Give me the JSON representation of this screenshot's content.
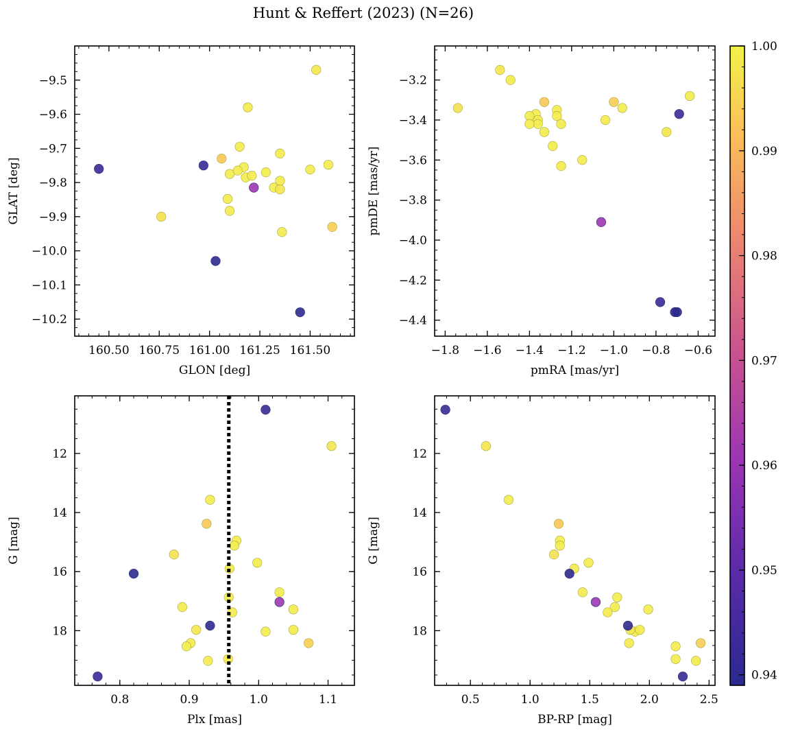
{
  "chart_data": {
    "type": "scatter",
    "title": "Hunt & Reffert (2023) (N=26)",
    "colormap": "plasma",
    "colorbar": {
      "range": [
        0.939,
        1.0
      ],
      "ticks": [
        0.94,
        0.95,
        0.96,
        0.97,
        0.98,
        0.99,
        1.0
      ],
      "tick_labels": [
        "0.94",
        "0.95",
        "0.96",
        "0.97",
        "0.98",
        "0.99",
        "1.00"
      ],
      "low_color": "#2a2a8e",
      "mid_color": "#a93cb8",
      "high_color": "#f2f24a"
    },
    "stars": [
      {
        "glon": 160.45,
        "glat": -9.76,
        "pmra": -0.78,
        "pmde": -4.31,
        "plx": 0.768,
        "gmag": 19.55,
        "bprp": 2.28,
        "prob": 0.942
      },
      {
        "glon": 160.97,
        "glat": -9.75,
        "pmra": -0.69,
        "pmde": -3.37,
        "plx": 1.01,
        "gmag": 10.52,
        "bprp": 0.29,
        "prob": 0.942
      },
      {
        "glon": 161.03,
        "glat": -10.03,
        "pmra": -0.71,
        "pmde": -4.36,
        "plx": 0.82,
        "gmag": 16.07,
        "bprp": 1.33,
        "prob": 0.94
      },
      {
        "glon": 161.45,
        "glat": -10.18,
        "pmra": -0.7,
        "pmde": -4.36,
        "plx": 0.93,
        "gmag": 17.83,
        "bprp": 1.82,
        "prob": 0.94
      },
      {
        "glon": 161.22,
        "glat": -9.815,
        "pmra": -1.06,
        "pmde": -3.91,
        "plx": 1.03,
        "gmag": 17.03,
        "bprp": 1.55,
        "prob": 0.961
      },
      {
        "glon": 161.53,
        "glat": -9.47,
        "pmra": -1.54,
        "pmde": -3.15,
        "plx": 1.105,
        "gmag": 11.75,
        "bprp": 0.63,
        "prob": 0.998
      },
      {
        "glon": 160.76,
        "glat": -9.9,
        "pmra": -1.74,
        "pmde": -3.34,
        "plx": 0.878,
        "gmag": 15.42,
        "bprp": 1.2,
        "prob": 0.997
      },
      {
        "glon": 161.19,
        "glat": -9.58,
        "pmra": -1.49,
        "pmde": -3.2,
        "plx": 0.93,
        "gmag": 13.57,
        "bprp": 0.82,
        "prob": 0.999
      },
      {
        "glon": 161.06,
        "glat": -9.73,
        "pmra": -1.33,
        "pmde": -3.31,
        "plx": 0.925,
        "gmag": 14.38,
        "bprp": 1.24,
        "prob": 0.993
      },
      {
        "glon": 161.15,
        "glat": -9.695,
        "pmra": -1.27,
        "pmde": -3.35,
        "plx": 0.968,
        "gmag": 14.95,
        "bprp": 1.25,
        "prob": 0.999
      },
      {
        "glon": 161.17,
        "glat": -9.755,
        "pmra": -1.37,
        "pmde": -3.37,
        "plx": 0.965,
        "gmag": 15.12,
        "bprp": 1.25,
        "prob": 0.999
      },
      {
        "glon": 161.1,
        "glat": -9.775,
        "pmra": -1.27,
        "pmde": -3.38,
        "plx": 0.998,
        "gmag": 15.7,
        "bprp": 1.49,
        "prob": 0.999
      },
      {
        "glon": 161.14,
        "glat": -9.765,
        "pmra": -1.4,
        "pmde": -3.38,
        "plx": 0.958,
        "gmag": 15.9,
        "bprp": 1.37,
        "prob": 0.999
      },
      {
        "glon": 161.18,
        "glat": -9.785,
        "pmra": -1.36,
        "pmde": -3.4,
        "plx": 1.03,
        "gmag": 16.7,
        "bprp": 1.44,
        "prob": 0.999
      },
      {
        "glon": 161.21,
        "glat": -9.78,
        "pmra": -1.36,
        "pmde": -3.42,
        "plx": 0.957,
        "gmag": 16.87,
        "bprp": 1.73,
        "prob": 0.999
      },
      {
        "glon": 161.28,
        "glat": -9.77,
        "pmra": -1.4,
        "pmde": -3.42,
        "plx": 0.89,
        "gmag": 17.2,
        "bprp": 1.71,
        "prob": 0.999
      },
      {
        "glon": 161.35,
        "glat": -9.715,
        "pmra": -1.25,
        "pmde": -3.42,
        "plx": 1.05,
        "gmag": 17.28,
        "bprp": 1.99,
        "prob": 0.999
      },
      {
        "glon": 161.32,
        "glat": -9.815,
        "pmra": -1.33,
        "pmde": -3.46,
        "plx": 0.962,
        "gmag": 17.38,
        "bprp": 1.65,
        "prob": 0.999
      },
      {
        "glon": 161.35,
        "glat": -9.82,
        "pmra": -0.75,
        "pmde": -3.46,
        "plx": 0.91,
        "gmag": 17.97,
        "bprp": 1.84,
        "prob": 0.998
      },
      {
        "glon": 161.35,
        "glat": -9.795,
        "pmra": -1.29,
        "pmde": -3.53,
        "plx": 1.01,
        "gmag": 18.03,
        "bprp": 1.88,
        "prob": 0.999
      },
      {
        "glon": 161.5,
        "glat": -9.762,
        "pmra": -1.25,
        "pmde": -3.63,
        "plx": 1.05,
        "gmag": 17.97,
        "bprp": 1.92,
        "prob": 0.999
      },
      {
        "glon": 161.59,
        "glat": -9.748,
        "pmra": -1.15,
        "pmde": -3.6,
        "plx": 0.902,
        "gmag": 18.42,
        "bprp": 1.83,
        "prob": 0.999
      },
      {
        "glon": 161.61,
        "glat": -9.93,
        "pmra": -1.0,
        "pmde": -3.31,
        "plx": 1.072,
        "gmag": 18.42,
        "bprp": 2.43,
        "prob": 0.994
      },
      {
        "glon": 161.09,
        "glat": -9.848,
        "pmra": -1.04,
        "pmde": -3.4,
        "plx": 0.896,
        "gmag": 18.53,
        "bprp": 2.22,
        "prob": 0.999
      },
      {
        "glon": 161.1,
        "glat": -9.883,
        "pmra": -0.96,
        "pmde": -3.34,
        "plx": 0.956,
        "gmag": 18.96,
        "bprp": 2.22,
        "prob": 0.999
      },
      {
        "glon": 161.36,
        "glat": -9.945,
        "pmra": -0.64,
        "pmde": -3.28,
        "plx": 0.927,
        "gmag": 19.02,
        "bprp": 2.39,
        "prob": 0.999
      }
    ],
    "panels": [
      {
        "id": "glon-glat",
        "xkey": "glon",
        "ykey": "glat",
        "xlabel": "GLON [deg]",
        "ylabel": "GLAT [deg]",
        "xlim": [
          160.33,
          161.72
        ],
        "ylim": [
          -10.25,
          -9.4
        ],
        "yinvert": false,
        "xticks": [
          160.5,
          160.75,
          161.0,
          161.25,
          161.5
        ],
        "xtick_labels": [
          "160.50",
          "160.75",
          "161.00",
          "161.25",
          "161.50"
        ],
        "yticks": [
          -9.5,
          -9.6,
          -9.7,
          -9.8,
          -9.9,
          -10.0,
          -10.1,
          -10.2
        ],
        "ytick_labels": [
          "−9.5",
          "−9.6",
          "−9.7",
          "−9.8",
          "−9.9",
          "−10.0",
          "−10.1",
          "−10.2"
        ],
        "xminor": 0.05,
        "yminor": 0.025
      },
      {
        "id": "pmra-pmde",
        "xkey": "pmra",
        "ykey": "pmde",
        "xlabel": "pmRA [mas/yr]",
        "ylabel": "pmDE [mas/yr]",
        "xlim": [
          -1.85,
          -0.52
        ],
        "ylim": [
          -4.48,
          -3.03
        ],
        "yinvert": false,
        "xticks": [
          -1.8,
          -1.6,
          -1.4,
          -1.2,
          -1.0,
          -0.8,
          -0.6
        ],
        "xtick_labels": [
          "−1.8",
          "−1.6",
          "−1.4",
          "−1.2",
          "−1.0",
          "−0.8",
          "−0.6"
        ],
        "yticks": [
          -3.2,
          -3.4,
          -3.6,
          -3.8,
          -4.0,
          -4.2,
          -4.4
        ],
        "ytick_labels": [
          "−3.2",
          "−3.4",
          "−3.6",
          "−3.8",
          "−4.0",
          "−4.2",
          "−4.4"
        ],
        "xminor": 0.05,
        "yminor": 0.05
      },
      {
        "id": "plx-g",
        "xkey": "plx",
        "ykey": "gmag",
        "xlabel": "Plx [mas]",
        "ylabel": "G [mag]",
        "xlim": [
          0.735,
          1.138
        ],
        "ylim": [
          10.05,
          19.85
        ],
        "yinvert": true,
        "xticks": [
          0.8,
          0.9,
          1.0,
          1.1
        ],
        "xtick_labels": [
          "0.8",
          "0.9",
          "1.0",
          "1.1"
        ],
        "yticks": [
          12,
          14,
          16,
          18
        ],
        "ytick_labels": [
          "12",
          "14",
          "16",
          "18"
        ],
        "xminor": 0.02,
        "yminor": 0.5,
        "vline": {
          "x": 0.957,
          "style": "dotted",
          "color": "#000000"
        }
      },
      {
        "id": "bprp-g",
        "xkey": "bprp",
        "ykey": "gmag",
        "xlabel": "BP-RP [mag]",
        "ylabel": "G [mag]",
        "xlim": [
          0.2,
          2.55
        ],
        "ylim": [
          10.05,
          19.85
        ],
        "yinvert": true,
        "xticks": [
          0.5,
          1.0,
          1.5,
          2.0,
          2.5
        ],
        "xtick_labels": [
          "0.5",
          "1.0",
          "1.5",
          "2.0",
          "2.5"
        ],
        "yticks": [
          12,
          14,
          16,
          18
        ],
        "ytick_labels": [
          "12",
          "14",
          "16",
          "18"
        ],
        "xminor": 0.1,
        "yminor": 0.5
      }
    ]
  }
}
